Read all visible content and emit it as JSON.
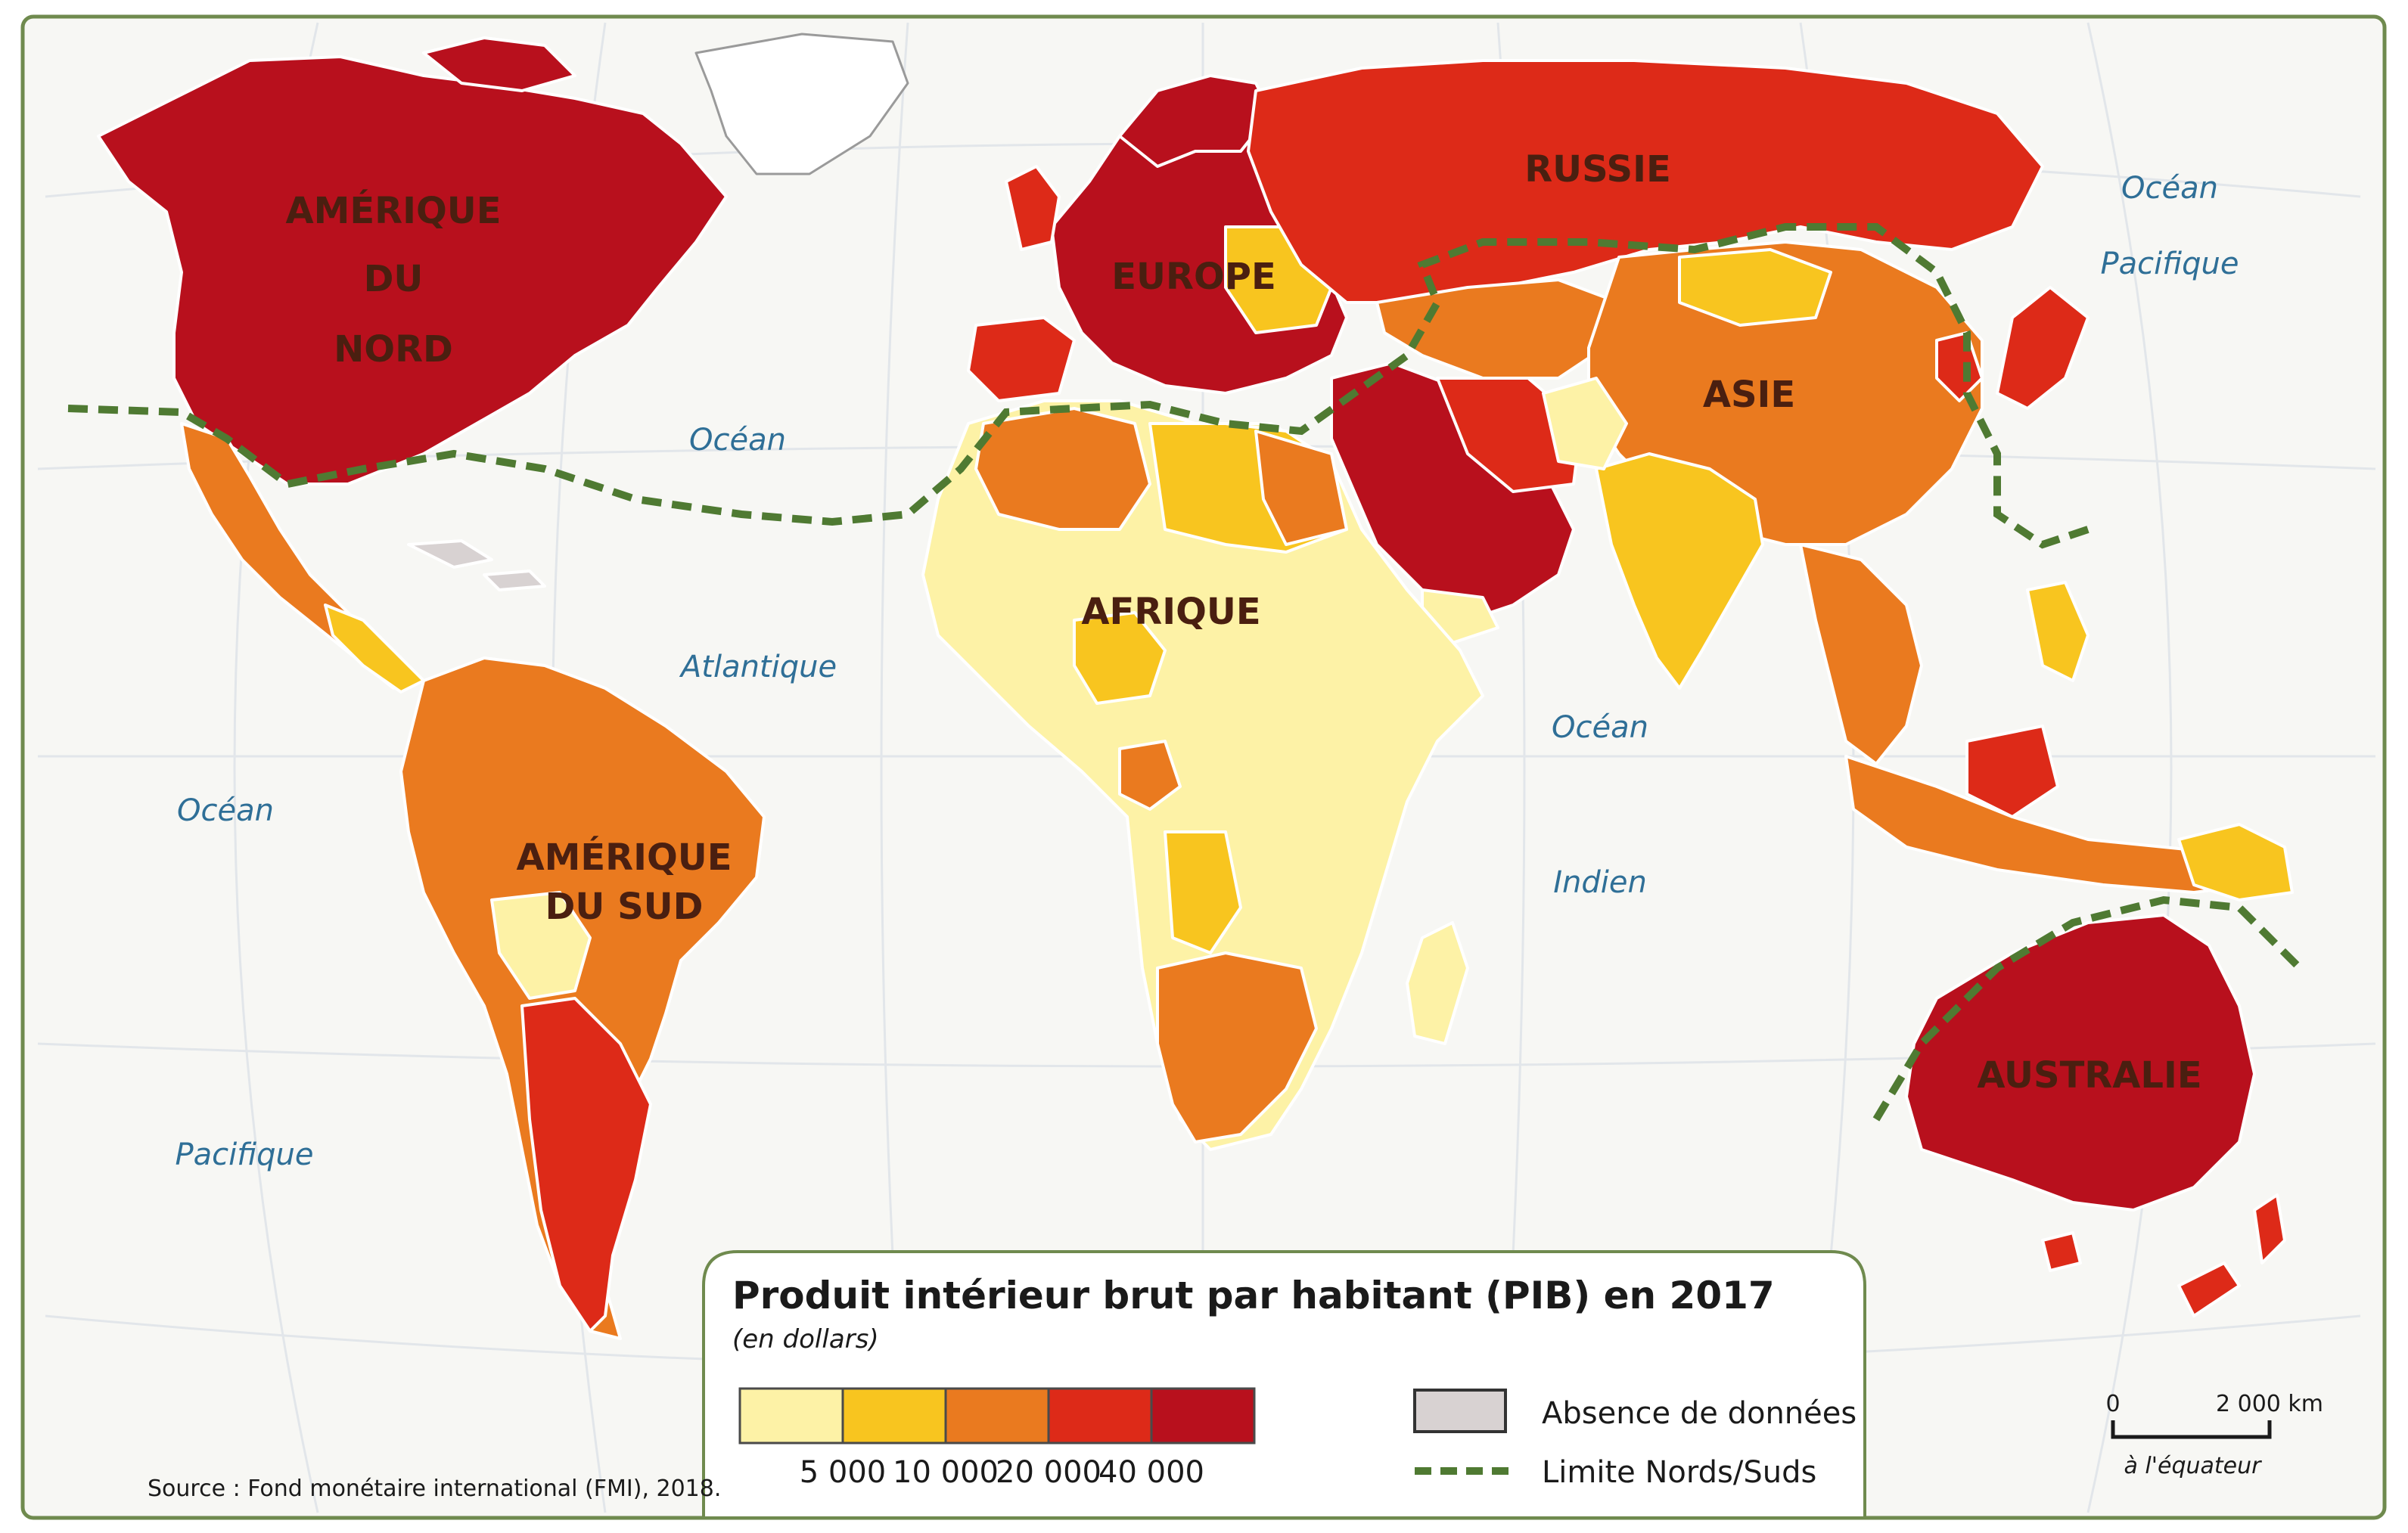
{
  "map": {
    "regions": {
      "north_america": [
        "AMÉRIQUE",
        "DU",
        "NORD"
      ],
      "south_america": [
        "AMÉRIQUE",
        "DU SUD"
      ],
      "europe": "EUROPE",
      "russia": "RUSSIE",
      "asia": "ASIE",
      "africa": "AFRIQUE",
      "australia": "AUSTRALIE"
    },
    "oceans": {
      "atlantic_1": "Océan",
      "atlantic_2": "Atlantique",
      "pacific_west_1": "Océan",
      "pacific_west_2": "Pacifique",
      "pacific_east_1": "Océan",
      "pacific_east_2": "Pacifique",
      "indian_1": "Océan",
      "indian_2": "Indien"
    }
  },
  "legend": {
    "title": "Produit intérieur brut par habitant (PIB) en 2017",
    "subtitle": "(en dollars)",
    "classes": [
      {
        "color": "#fdf2a6"
      },
      {
        "color": "#f8c51f"
      },
      {
        "color": "#ea7a1f"
      },
      {
        "color": "#dd2a18"
      },
      {
        "color": "#b8101d"
      }
    ],
    "thresholds": [
      "5 000",
      "10 000",
      "20 000",
      "40 000"
    ],
    "no_data": {
      "label": "Absence de données",
      "color": "#d8d2d2"
    },
    "north_south_line": {
      "label": "Limite Nords/Suds",
      "color": "#4f7a32"
    }
  },
  "scale": {
    "start": "0",
    "end": "2 000 km",
    "note": "à l'équateur"
  },
  "source": "Source : Fond monétaire international (FMI), 2018."
}
